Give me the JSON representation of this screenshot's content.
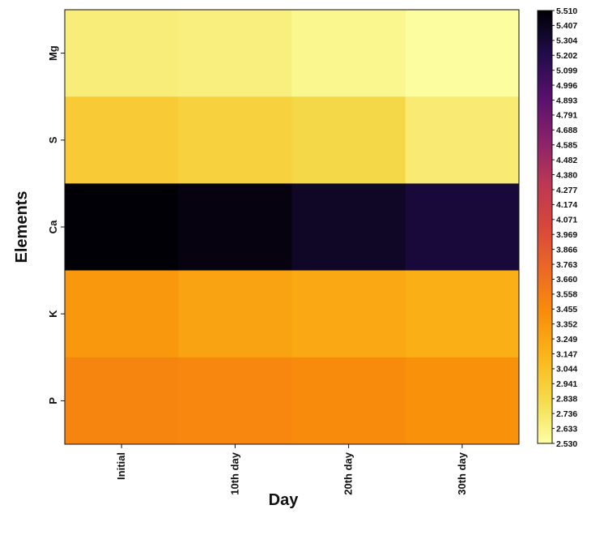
{
  "chart_data": {
    "type": "heatmap",
    "xlabel": "Day",
    "ylabel": "Elements",
    "x_categories": [
      "Initial",
      "10th day",
      "20th day",
      "30th day"
    ],
    "y_categories": [
      "Mg",
      "S",
      "Ca",
      "K",
      "P"
    ],
    "values": [
      [
        2.68,
        2.66,
        2.6,
        2.55
      ],
      [
        2.96,
        2.91,
        2.85,
        2.7
      ],
      [
        5.5,
        5.46,
        5.37,
        5.28
      ],
      [
        3.35,
        3.27,
        3.22,
        3.18
      ],
      [
        3.5,
        3.48,
        3.45,
        3.4
      ]
    ],
    "colorbar": {
      "min": 2.53,
      "max": 5.51,
      "colormap": "inferno",
      "ticks": [
        "5.510",
        "5.407",
        "5.304",
        "5.202",
        "5.099",
        "4.996",
        "4.893",
        "4.791",
        "4.688",
        "4.585",
        "4.482",
        "4.380",
        "4.277",
        "4.174",
        "4.071",
        "3.969",
        "3.866",
        "3.763",
        "3.660",
        "3.558",
        "3.455",
        "3.352",
        "3.249",
        "3.147",
        "3.044",
        "2.941",
        "2.838",
        "2.736",
        "2.633",
        "2.530"
      ]
    }
  }
}
